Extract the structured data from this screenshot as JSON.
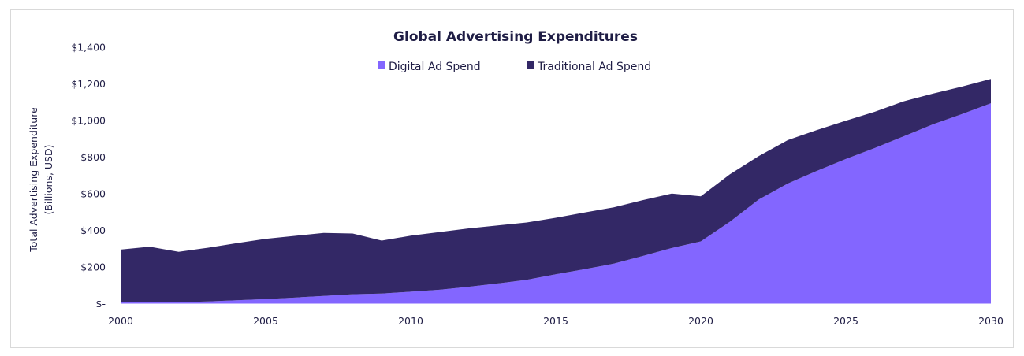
{
  "chart_data": {
    "type": "area",
    "stacked": true,
    "title": "Global Advertising Expenditures",
    "xlabel": "",
    "ylabel": [
      "Total Advertising Expenditure",
      "(Billions, USD)"
    ],
    "x": [
      2000,
      2001,
      2002,
      2003,
      2004,
      2005,
      2006,
      2007,
      2008,
      2009,
      2010,
      2011,
      2012,
      2013,
      2014,
      2015,
      2016,
      2017,
      2018,
      2019,
      2020,
      2021,
      2022,
      2023,
      2024,
      2025,
      2026,
      2027,
      2028,
      2029,
      2030
    ],
    "series": [
      {
        "name": "Digital Ad Spend",
        "color": "#8366ff",
        "values": [
          8,
          8,
          7,
          12,
          18,
          25,
          33,
          42,
          51,
          55,
          65,
          76,
          92,
          110,
          130,
          160,
          188,
          218,
          260,
          304,
          340,
          447,
          569,
          656,
          725,
          790,
          850,
          914,
          979,
          1035,
          1094
        ]
      },
      {
        "name": "Traditional Ad Spend",
        "color": "#332866",
        "values": [
          287,
          303,
          276,
          293,
          312,
          329,
          337,
          344,
          332,
          289,
          306,
          315,
          319,
          317,
          313,
          309,
          310,
          308,
          305,
          297,
          246,
          259,
          237,
          237,
          223,
          209,
          198,
          191,
          168,
          150,
          133
        ]
      }
    ],
    "xlim": [
      2000,
      2030
    ],
    "ylim": [
      0,
      1400
    ],
    "x_ticks": [
      2000,
      2005,
      2010,
      2015,
      2020,
      2025,
      2030
    ],
    "x_tick_labels": [
      "2000",
      "2005",
      "2010",
      "2015",
      "2020",
      "2025",
      "2030"
    ],
    "y_ticks": [
      0,
      200,
      400,
      600,
      800,
      1000,
      1200,
      1400
    ],
    "y_tick_labels": [
      "$-",
      "$200",
      "$400",
      "$600",
      "$800",
      "$1,000",
      "$1,200",
      "$1,400"
    ],
    "grid": false,
    "legend": {
      "placement": "top-center",
      "entries": [
        "Digital Ad Spend",
        "Traditional Ad Spend"
      ]
    }
  }
}
